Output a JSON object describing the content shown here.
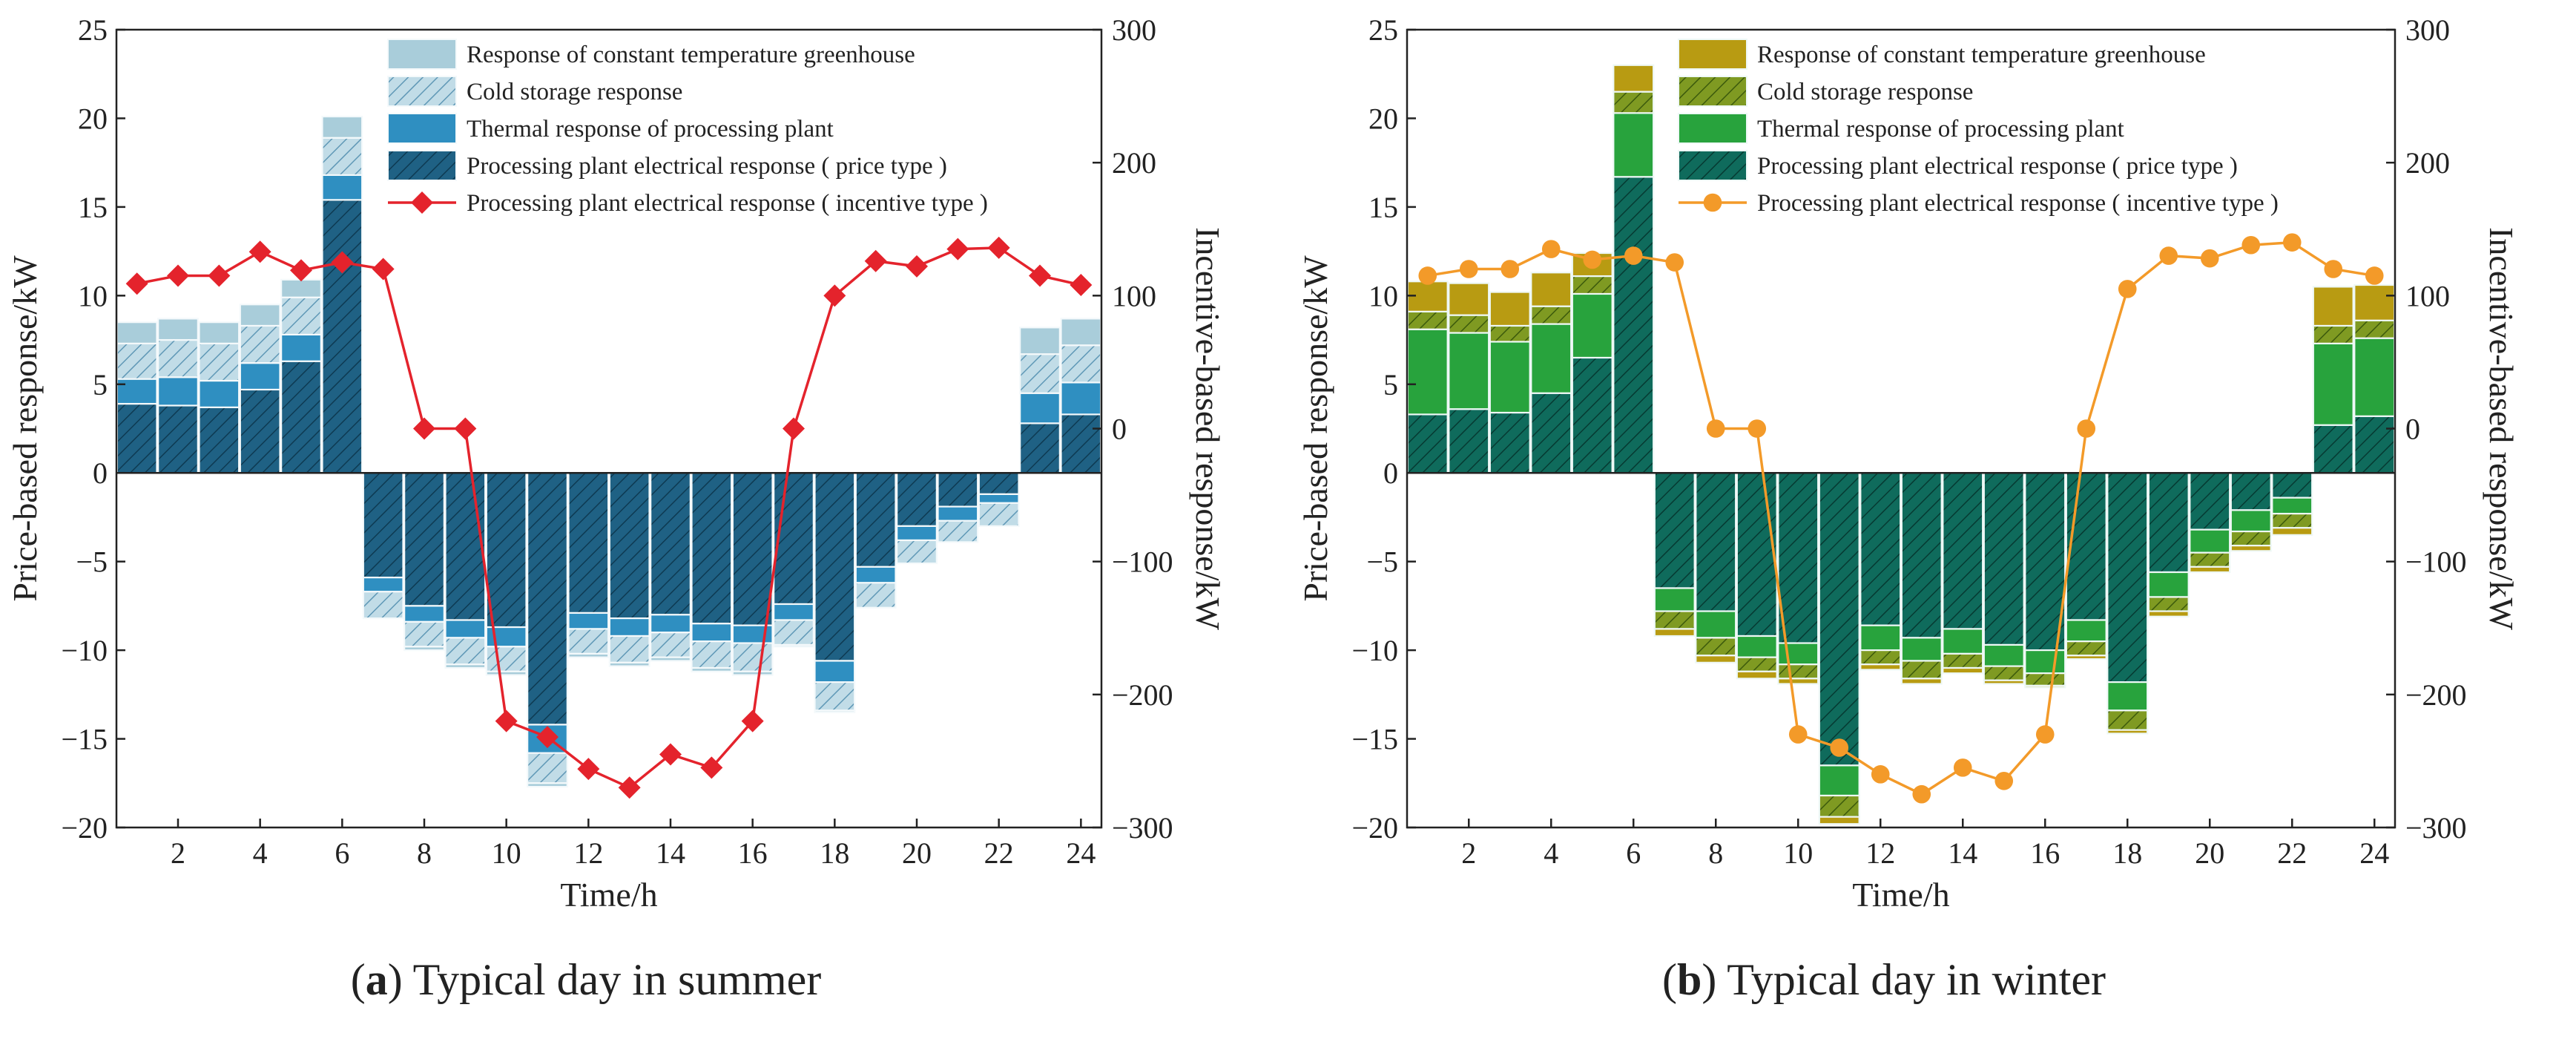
{
  "figure": {
    "panels_count": 2
  },
  "chart_data": [
    {
      "type": "bar",
      "id": "summer",
      "caption_letter": "a",
      "caption_open": "(",
      "caption_close": ")",
      "caption_text": " Typical day in summer",
      "xlabel": "Time/h",
      "ylabel_left": "Price-based response/kW",
      "ylabel_right": "Incentive-based response/kW",
      "x_ticks": [
        2,
        4,
        6,
        8,
        10,
        12,
        14,
        16,
        18,
        20,
        22,
        24
      ],
      "x_tick_labels": [
        "2",
        "4",
        "6",
        "8",
        "10",
        "12",
        "14",
        "16",
        "18",
        "20",
        "22",
        "24"
      ],
      "y_left_ticks": [
        -20,
        -15,
        -10,
        -5,
        0,
        5,
        10,
        15,
        20,
        25
      ],
      "y_left_tick_labels": [
        "−20",
        "−15",
        "−10",
        "−5",
        "0",
        "5",
        "10",
        "15",
        "20",
        "25"
      ],
      "y_right_ticks": [
        -300,
        -200,
        -100,
        0,
        100,
        200,
        300
      ],
      "y_right_tick_labels": [
        "−300",
        "−200",
        "−100",
        "0",
        "100",
        "200",
        "300"
      ],
      "ylim_left": [
        -20,
        25
      ],
      "ylim_right": [
        -300,
        300
      ],
      "xlim": [
        0.5,
        24.5
      ],
      "colors": {
        "greenhouse": "#a9cdda",
        "cold": "#c1dce7",
        "cold_hatch": "#5f98b6",
        "thermal": "#2f8fc1",
        "electrical": "#1f6184",
        "electrical_hatch": "#0e3a52",
        "line": "#e4232c",
        "bar_edge": "#f4f9fb"
      },
      "marker": "diamond",
      "legend": [
        "Response of constant temperature greenhouse",
        "Cold storage response",
        "Thermal response of processing plant",
        "Processing plant electrical response ( price type )",
        "Processing plant electrical response ( incentive type )"
      ],
      "categories": [
        1,
        2,
        3,
        4,
        5,
        6,
        7,
        8,
        9,
        10,
        11,
        12,
        13,
        14,
        15,
        16,
        17,
        18,
        19,
        20,
        21,
        22,
        23,
        24
      ],
      "series": [
        {
          "name": "Processing plant electrical response ( price type )",
          "key": "electrical",
          "values": [
            3.9,
            3.8,
            3.7,
            4.7,
            6.3,
            15.4,
            -5.9,
            -7.5,
            -8.3,
            -8.7,
            -14.2,
            -7.9,
            -8.2,
            -8.0,
            -8.5,
            -8.6,
            -7.4,
            -10.6,
            -5.3,
            -3.0,
            -1.9,
            -1.2,
            2.8,
            3.3
          ]
        },
        {
          "name": "Thermal response of processing plant",
          "key": "thermal",
          "values": [
            1.4,
            1.6,
            1.5,
            1.5,
            1.5,
            1.4,
            -0.8,
            -0.9,
            -1.0,
            -1.1,
            -1.6,
            -0.9,
            -1.0,
            -1.0,
            -1.0,
            -1.0,
            -0.9,
            -1.2,
            -0.9,
            -0.8,
            -0.8,
            -0.5,
            1.7,
            1.8
          ]
        },
        {
          "name": "Cold storage response",
          "key": "cold",
          "values": [
            2.0,
            2.1,
            2.1,
            2.1,
            2.1,
            2.1,
            -1.5,
            -1.4,
            -1.5,
            -1.4,
            -1.7,
            -1.4,
            -1.5,
            -1.4,
            -1.5,
            -1.6,
            -1.4,
            -1.6,
            -1.4,
            -1.3,
            -1.2,
            -1.3,
            2.2,
            2.1
          ]
        },
        {
          "name": "Response of constant temperature greenhouse",
          "key": "greenhouse",
          "values": [
            1.2,
            1.2,
            1.2,
            1.2,
            1.0,
            1.2,
            0.0,
            -0.2,
            -0.2,
            -0.2,
            -0.2,
            -0.2,
            -0.2,
            -0.2,
            -0.2,
            -0.2,
            -0.1,
            -0.1,
            0.0,
            0.0,
            0.0,
            0.0,
            1.5,
            1.5
          ]
        },
        {
          "name": "Processing plant electrical response ( incentive type )",
          "key": "incentive",
          "axis": "right",
          "values": [
            109,
            115,
            115,
            133,
            119,
            125,
            120,
            0,
            0,
            -220,
            -232,
            -256,
            -270,
            -245,
            -255,
            -220,
            0,
            100,
            126,
            122,
            135,
            136,
            115,
            108
          ]
        }
      ]
    },
    {
      "type": "bar",
      "id": "winter",
      "caption_letter": "b",
      "caption_open": "(",
      "caption_close": ")",
      "caption_text": " Typical day in winter",
      "xlabel": "Time/h",
      "ylabel_left": "Price-based response/kW",
      "ylabel_right": "Incentive-based response/kW",
      "x_ticks": [
        2,
        4,
        6,
        8,
        10,
        12,
        14,
        16,
        18,
        20,
        22,
        24
      ],
      "x_tick_labels": [
        "2",
        "4",
        "6",
        "8",
        "10",
        "12",
        "14",
        "16",
        "18",
        "20",
        "22",
        "24"
      ],
      "y_left_ticks": [
        -20,
        -15,
        -10,
        -5,
        0,
        5,
        10,
        15,
        20,
        25
      ],
      "y_left_tick_labels": [
        "−20",
        "−15",
        "−10",
        "−5",
        "0",
        "5",
        "10",
        "15",
        "20",
        "25"
      ],
      "y_right_ticks": [
        -300,
        -200,
        -100,
        0,
        100,
        200,
        300
      ],
      "y_right_tick_labels": [
        "−300",
        "−200",
        "−100",
        "0",
        "100",
        "200",
        "300"
      ],
      "ylim_left": [
        -20,
        25
      ],
      "ylim_right": [
        -300,
        300
      ],
      "xlim": [
        0.5,
        24.5
      ],
      "colors": {
        "greenhouse": "#b89b12",
        "cold": "#7f9a22",
        "cold_hatch": "#3c5a0c",
        "thermal": "#28a33d",
        "electrical": "#0f6b5c",
        "electrical_hatch": "#063a32",
        "line": "#f39a29",
        "bar_edge": "#eef8f6"
      },
      "marker": "circle",
      "legend": [
        "Response of constant temperature greenhouse",
        "Cold storage response",
        "Thermal response of processing plant",
        "Processing plant electrical response ( price type )",
        "Processing plant electrical response ( incentive type )"
      ],
      "categories": [
        1,
        2,
        3,
        4,
        5,
        6,
        7,
        8,
        9,
        10,
        11,
        12,
        13,
        14,
        15,
        16,
        17,
        18,
        19,
        20,
        21,
        22,
        23,
        24
      ],
      "series": [
        {
          "name": "Processing plant electrical response ( price type )",
          "key": "electrical",
          "values": [
            3.3,
            3.6,
            3.4,
            4.5,
            6.5,
            16.7,
            -6.5,
            -7.8,
            -9.2,
            -9.6,
            -16.5,
            -8.6,
            -9.3,
            -8.8,
            -9.7,
            -10.0,
            -8.3,
            -11.8,
            -5.6,
            -3.2,
            -2.1,
            -1.4,
            2.7,
            3.2
          ]
        },
        {
          "name": "Thermal response of processing plant",
          "key": "thermal",
          "values": [
            4.8,
            4.3,
            4.0,
            3.9,
            3.6,
            3.6,
            -1.3,
            -1.5,
            -1.2,
            -1.2,
            -1.7,
            -1.4,
            -1.3,
            -1.4,
            -1.2,
            -1.3,
            -1.2,
            -1.6,
            -1.4,
            -1.3,
            -1.2,
            -0.9,
            4.6,
            4.4
          ]
        },
        {
          "name": "Cold storage response",
          "key": "cold",
          "values": [
            1.0,
            1.0,
            0.9,
            1.0,
            1.0,
            1.2,
            -1.0,
            -1.0,
            -0.8,
            -0.8,
            -1.2,
            -0.8,
            -1.0,
            -0.8,
            -0.8,
            -0.7,
            -0.8,
            -1.1,
            -0.8,
            -0.8,
            -0.8,
            -0.8,
            1.0,
            1.0
          ]
        },
        {
          "name": "Response of constant temperature greenhouse",
          "key": "greenhouse",
          "values": [
            1.7,
            1.8,
            1.9,
            1.9,
            1.3,
            1.5,
            -0.4,
            -0.4,
            -0.4,
            -0.3,
            -0.4,
            -0.3,
            -0.3,
            -0.3,
            -0.2,
            -0.1,
            -0.2,
            -0.2,
            -0.3,
            -0.3,
            -0.3,
            -0.4,
            2.2,
            2.0
          ]
        },
        {
          "name": "Processing plant electrical response ( incentive type )",
          "key": "incentive",
          "axis": "right",
          "values": [
            115,
            120,
            120,
            135,
            127,
            130,
            125,
            0,
            0,
            -230,
            -240,
            -260,
            -275,
            -255,
            -265,
            -230,
            0,
            105,
            130,
            128,
            138,
            140,
            120,
            115
          ]
        }
      ]
    }
  ]
}
